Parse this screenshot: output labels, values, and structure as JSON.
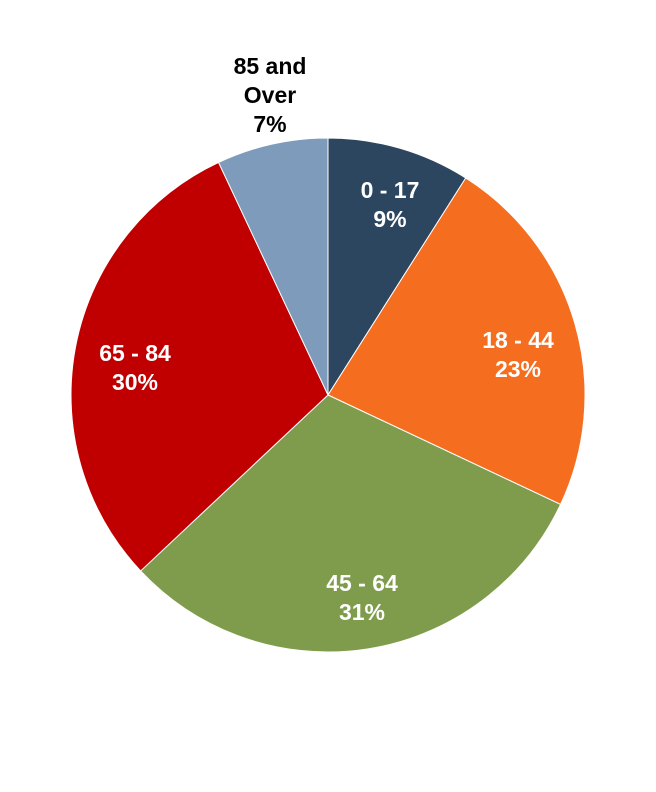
{
  "chart_data": {
    "type": "pie",
    "categories": [
      "0 - 17",
      "18 - 44",
      "45 - 64",
      "65 - 84",
      "85 and Over"
    ],
    "values": [
      9,
      23,
      31,
      30,
      7
    ],
    "value_labels": [
      "9%",
      "23%",
      "31%",
      "30%",
      "7%"
    ],
    "colors": [
      "#2d4660",
      "#f56d1f",
      "#7f9b4c",
      "#c00000",
      "#7f9bbb"
    ]
  }
}
